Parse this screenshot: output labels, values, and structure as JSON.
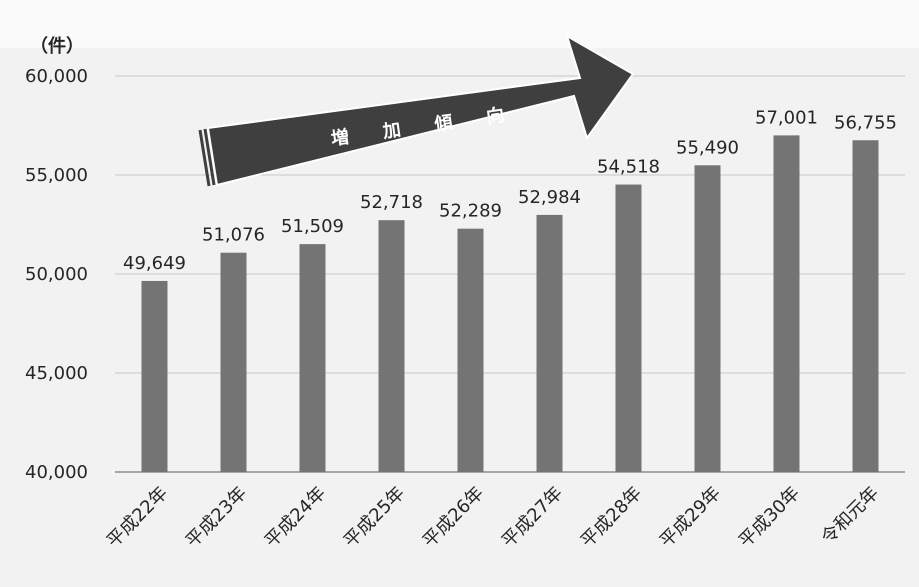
{
  "chart_data": {
    "type": "bar",
    "unit_label": "（件）",
    "categories": [
      "平成22年",
      "平成23年",
      "平成24年",
      "平成25年",
      "平成26年",
      "平成27年",
      "平成28年",
      "平成29年",
      "平成30年",
      "令和元年"
    ],
    "values": [
      49649,
      51076,
      51509,
      52718,
      52289,
      52984,
      54518,
      55490,
      57001,
      56755
    ],
    "value_labels": [
      "49,649",
      "51,076",
      "51,509",
      "52,718",
      "52,289",
      "52,984",
      "54,518",
      "55,490",
      "57,001",
      "56,755"
    ],
    "y_ticks": [
      40000,
      45000,
      50000,
      55000,
      60000
    ],
    "y_tick_labels": [
      "40,000",
      "45,000",
      "50,000",
      "55,000",
      "60,000"
    ],
    "ylim": [
      40000,
      60000
    ],
    "grid": true,
    "bar_color": "#747474",
    "annotation": "増 加 傾 向"
  }
}
